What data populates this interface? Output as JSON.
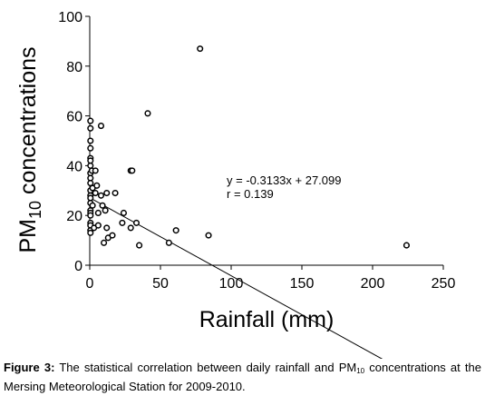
{
  "chart_data": {
    "type": "scatter",
    "xlabel": "Rainfall (mm)",
    "ylabel": {
      "prefix": "PM",
      "sub": "10",
      "suffix": " concentrations"
    },
    "xlim": [
      0,
      250
    ],
    "ylim": [
      0,
      100
    ],
    "xticks": [
      0,
      50,
      100,
      150,
      200,
      250
    ],
    "yticks": [
      0,
      20,
      40,
      60,
      80,
      100
    ],
    "grid": false,
    "points": [
      {
        "x": 0.5,
        "y": 58
      },
      {
        "x": 0.5,
        "y": 55
      },
      {
        "x": 0.5,
        "y": 50
      },
      {
        "x": 0.5,
        "y": 47
      },
      {
        "x": 0.5,
        "y": 43
      },
      {
        "x": 0.5,
        "y": 42
      },
      {
        "x": 0.5,
        "y": 40
      },
      {
        "x": 0.5,
        "y": 37
      },
      {
        "x": 0.5,
        "y": 35
      },
      {
        "x": 0.5,
        "y": 33
      },
      {
        "x": 0.5,
        "y": 30
      },
      {
        "x": 0.5,
        "y": 28
      },
      {
        "x": 0.5,
        "y": 27
      },
      {
        "x": 0.5,
        "y": 25
      },
      {
        "x": 0.5,
        "y": 22
      },
      {
        "x": 0.5,
        "y": 21
      },
      {
        "x": 0.5,
        "y": 20
      },
      {
        "x": 0.5,
        "y": 17
      },
      {
        "x": 0.5,
        "y": 16
      },
      {
        "x": 0.5,
        "y": 14
      },
      {
        "x": 0.5,
        "y": 13
      },
      {
        "x": 1.5,
        "y": 38
      },
      {
        "x": 2,
        "y": 31
      },
      {
        "x": 2,
        "y": 24
      },
      {
        "x": 3,
        "y": 15
      },
      {
        "x": 4,
        "y": 38
      },
      {
        "x": 4,
        "y": 29
      },
      {
        "x": 5,
        "y": 32
      },
      {
        "x": 6,
        "y": 21
      },
      {
        "x": 6,
        "y": 16
      },
      {
        "x": 8,
        "y": 56
      },
      {
        "x": 8,
        "y": 28
      },
      {
        "x": 9,
        "y": 24
      },
      {
        "x": 10,
        "y": 9
      },
      {
        "x": 11,
        "y": 22
      },
      {
        "x": 12,
        "y": 15
      },
      {
        "x": 12,
        "y": 29
      },
      {
        "x": 13,
        "y": 11
      },
      {
        "x": 16,
        "y": 12
      },
      {
        "x": 18,
        "y": 29
      },
      {
        "x": 23,
        "y": 17
      },
      {
        "x": 24,
        "y": 21
      },
      {
        "x": 29,
        "y": 38
      },
      {
        "x": 30,
        "y": 38
      },
      {
        "x": 29,
        "y": 15
      },
      {
        "x": 33,
        "y": 17
      },
      {
        "x": 35,
        "y": 8
      },
      {
        "x": 41,
        "y": 61
      },
      {
        "x": 56,
        "y": 9
      },
      {
        "x": 61,
        "y": 14
      },
      {
        "x": 78,
        "y": 87
      },
      {
        "x": 84,
        "y": 12
      },
      {
        "x": 224,
        "y": 8
      }
    ],
    "trendline": {
      "slope": -0.3133,
      "intercept": 27.099,
      "x_range": [
        0,
        224
      ]
    },
    "annotations": [
      "y = -0.3133x + 27.099",
      "r = 0.139"
    ]
  },
  "caption": {
    "label": "Figure 3:",
    "text_before": " The statistical correlation between daily rainfall and PM",
    "sub": "10",
    "text_after": " concentrations at the Mersing Meteorological Station for 2009-2010."
  }
}
